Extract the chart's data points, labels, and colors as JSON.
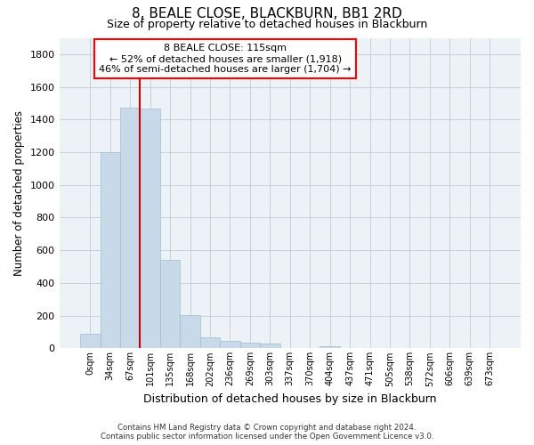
{
  "title_line1": "8, BEALE CLOSE, BLACKBURN, BB1 2RD",
  "title_line2": "Size of property relative to detached houses in Blackburn",
  "xlabel": "Distribution of detached houses by size in Blackburn",
  "ylabel": "Number of detached properties",
  "bar_color": "#c8daea",
  "bar_edge_color": "#a0bcd0",
  "background_color": "#edf2f7",
  "grid_color": "#c0ccd8",
  "annotation_box_text": "8 BEALE CLOSE: 115sqm\n← 52% of detached houses are smaller (1,918)\n46% of semi-detached houses are larger (1,704) →",
  "vline_color": "#cc0000",
  "categories": [
    "0sqm",
    "34sqm",
    "67sqm",
    "101sqm",
    "135sqm",
    "168sqm",
    "202sqm",
    "236sqm",
    "269sqm",
    "303sqm",
    "337sqm",
    "370sqm",
    "404sqm",
    "437sqm",
    "471sqm",
    "505sqm",
    "538sqm",
    "572sqm",
    "606sqm",
    "639sqm",
    "673sqm"
  ],
  "values": [
    90,
    1200,
    1470,
    1465,
    540,
    205,
    65,
    45,
    35,
    28,
    0,
    0,
    15,
    0,
    0,
    0,
    0,
    0,
    0,
    0,
    0
  ],
  "ylim": [
    0,
    1900
  ],
  "yticks": [
    0,
    200,
    400,
    600,
    800,
    1000,
    1200,
    1400,
    1600,
    1800
  ],
  "vline_position": 2.5,
  "footer_line1": "Contains HM Land Registry data © Crown copyright and database right 2024.",
  "footer_line2": "Contains public sector information licensed under the Open Government Licence v3.0."
}
